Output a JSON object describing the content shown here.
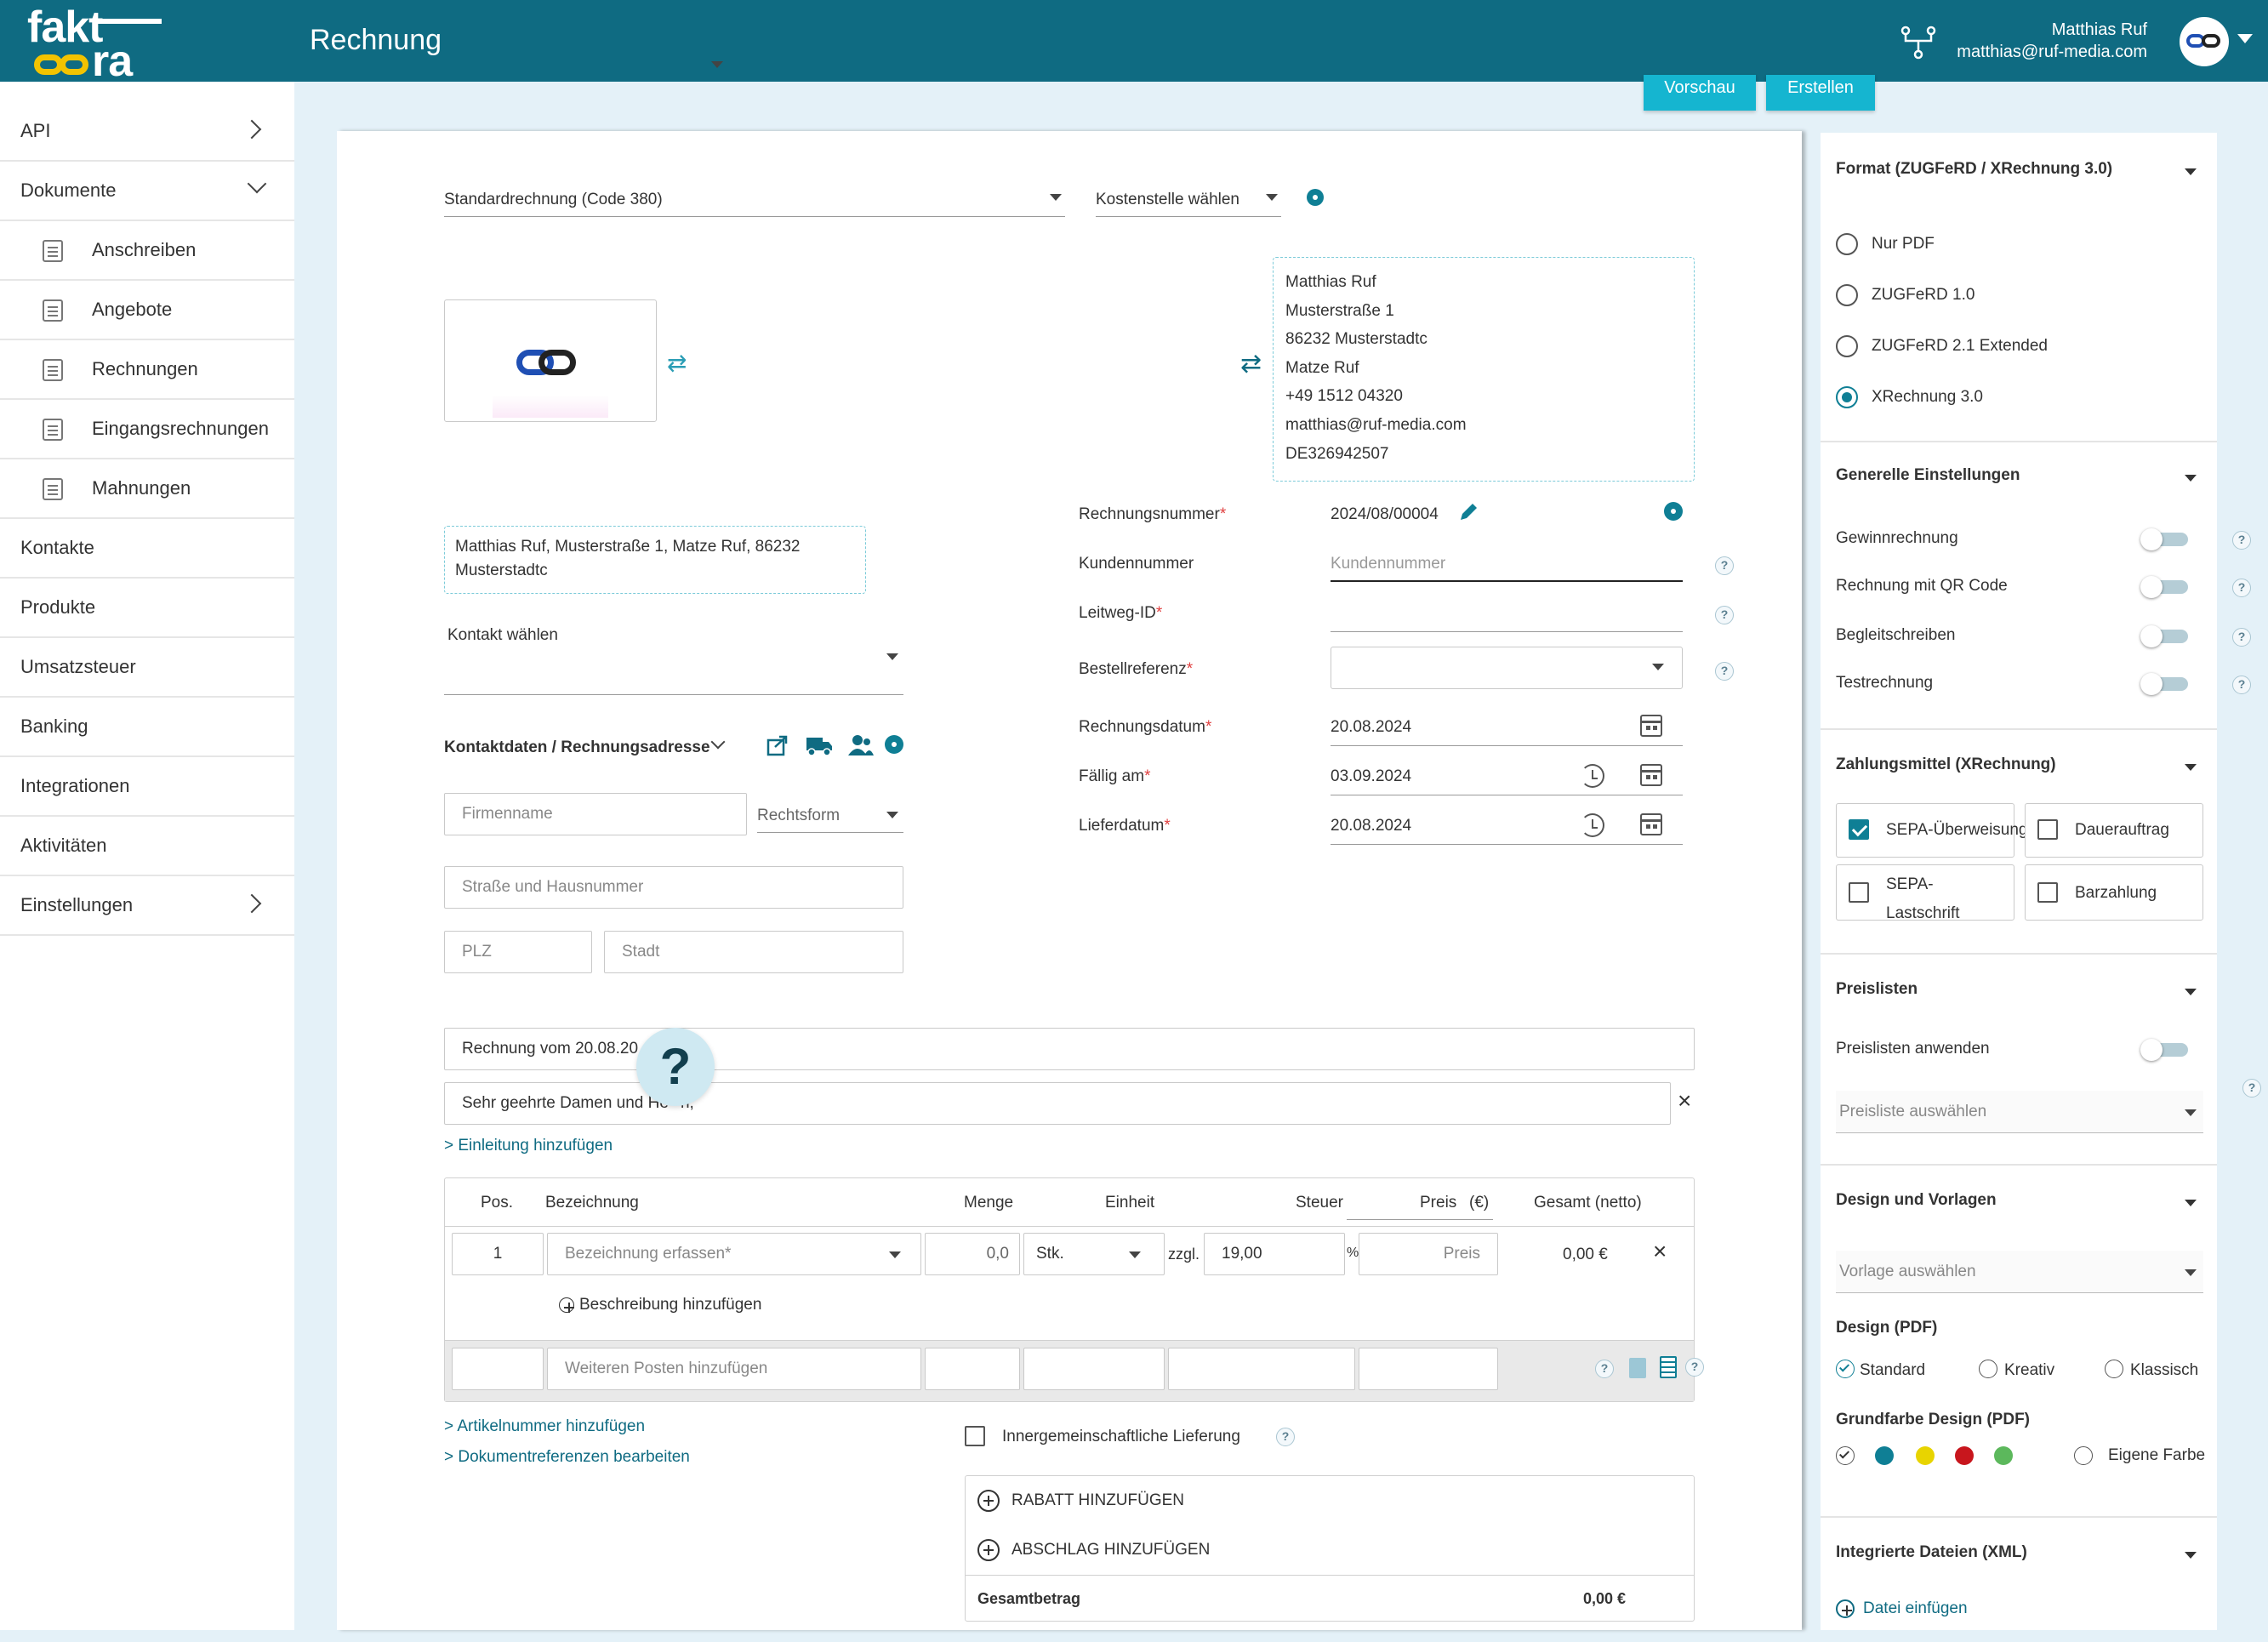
{
  "topbar": {
    "logo_line1": "fakt",
    "logo_line2": "ra",
    "page_title": "Rechnung",
    "user_name": "Matthias Ruf",
    "user_email": "matthias@ruf-media.com"
  },
  "sidebar": {
    "items": [
      {
        "label": "API"
      },
      {
        "label": "Dokumente"
      },
      {
        "label": "Anschreiben"
      },
      {
        "label": "Angebote"
      },
      {
        "label": "Rechnungen"
      },
      {
        "label": "Eingangsrechnungen"
      },
      {
        "label": "Mahnungen"
      },
      {
        "label": "Kontakte"
      },
      {
        "label": "Produkte"
      },
      {
        "label": "Umsatzsteuer"
      },
      {
        "label": "Banking"
      },
      {
        "label": "Integrationen"
      },
      {
        "label": "Aktivitäten"
      },
      {
        "label": "Einstellungen"
      }
    ]
  },
  "actions": {
    "preview": "Vorschau",
    "create": "Erstellen"
  },
  "doc": {
    "type": "Standardrechnung (Code 380)",
    "cost_center": "Kostenstelle wählen",
    "sender": {
      "name": "Matthias Ruf",
      "street": "Musterstraße 1",
      "city": "86232 Musterstadtc",
      "contact": "Matze Ruf",
      "phone": "+49 1512 04320",
      "email": "matthias@ruf-media.com",
      "vat": "DE326942507"
    },
    "sender_line": "Matthias Ruf, Musterstraße 1, Matze Ruf, 86232 Musterstadtc",
    "contact_select": "Kontakt wählen",
    "contact_heading": "Kontaktdaten / Rechnungsadresse",
    "company_placeholder": "Firmenname",
    "legal_form": "Rechtsform",
    "street_placeholder": "Straße und Hausnummer",
    "zip_placeholder": "PLZ",
    "city_placeholder": "Stadt"
  },
  "fields": {
    "invoice_number_label": "Rechnungsnummer",
    "invoice_number": "2024/08/00004",
    "customer_number_label": "Kundennummer",
    "customer_number_placeholder": "Kundennummer",
    "leitweg_label": "Leitweg-ID",
    "order_ref_label": "Bestellreferenz",
    "invoice_date_label": "Rechnungsdatum",
    "invoice_date": "20.08.2024",
    "due_label": "Fällig am",
    "due_date": "03.09.2024",
    "delivery_label": "Lieferdatum",
    "delivery_date": "20.08.2024",
    "required_mark": "*"
  },
  "texts": {
    "subject": "Rechnung vom 20.08.20",
    "greeting": "Sehr geehrte Damen und He",
    "greeting_tail": "n,",
    "add_intro": "> Einleitung hinzufügen",
    "help_bubble": "?"
  },
  "table": {
    "headers": [
      "Pos.",
      "Bezeichnung",
      "Menge",
      "Einheit",
      "Steuer",
      "Preis",
      "(€)",
      "Gesamt (netto)"
    ],
    "row": {
      "pos": "1",
      "desc_placeholder": "Bezeichnung erfassen*",
      "qty": "0,0",
      "unit": "Stk.",
      "tax_prefix": "zzgl.",
      "tax": "19,00",
      "tax_suffix": "%",
      "price_placeholder": "Preis",
      "total": "0,00 €"
    },
    "add_description": "Beschreibung hinzufügen",
    "add_item_placeholder": "Weiteren Posten hinzufügen"
  },
  "footer": {
    "add_article_no": "> Artikelnummer hinzufügen",
    "edit_doc_refs": "> Dokumentreferenzen bearbeiten",
    "intra_community": "Innergemeinschaftliche Lieferung",
    "add_discount": "RABATT HINZUFÜGEN",
    "add_surcharge": "ABSCHLAG HINZUFÜGEN",
    "total_label": "Gesamtbetrag",
    "total_value": "0,00 €"
  },
  "panel": {
    "format_heading": "Format (ZUGFeRD / XRechnung 3.0)",
    "formats": [
      "Nur PDF",
      "ZUGFeRD 1.0",
      "ZUGFeRD 2.1 Extended",
      "XRechnung 3.0"
    ],
    "selected_format": "XRechnung 3.0",
    "general_heading": "Generelle Einstellungen",
    "general": [
      "Gewinnrechnung",
      "Rechnung mit QR Code",
      "Begleitschreiben",
      "Testrechnung"
    ],
    "payment_heading": "Zahlungsmittel (XRechnung)",
    "payment": {
      "sepa_transfer": "SEPA-Überweisung",
      "standing_order": "Dauerauftrag",
      "sepa_debit_1": "SEPA-",
      "sepa_debit_2": "Lastschrift",
      "cash": "Barzahlung"
    },
    "pricelists_heading": "Preislisten",
    "apply_pricelists": "Preislisten anwenden",
    "pricelist_placeholder": "Preisliste auswählen",
    "design_heading": "Design und Vorlagen",
    "template_placeholder": "Vorlage auswählen",
    "design_pdf_label": "Design (PDF)",
    "designs": [
      "Standard",
      "Kreativ",
      "Klassisch"
    ],
    "color_label": "Grundfarbe Design (PDF)",
    "colors": [
      "#ffffff",
      "#0f7f95",
      "#e8d400",
      "#c8161d",
      "#5cb85c"
    ],
    "custom_color": "Eigene Farbe",
    "files_heading": "Integrierte Dateien (XML)",
    "insert_file": "Datei einfügen",
    "help": "?"
  }
}
